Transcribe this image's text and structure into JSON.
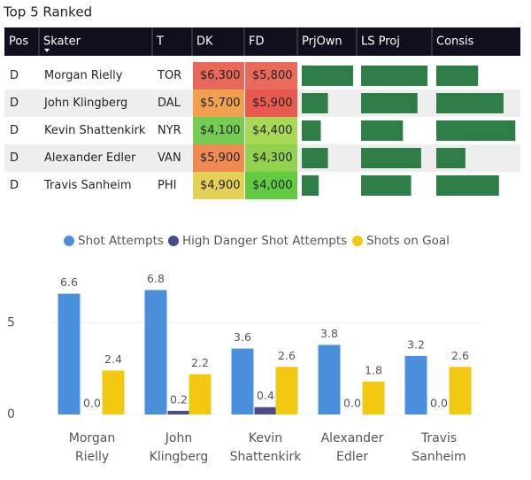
{
  "title": "Top 5 Ranked",
  "table": {
    "columns": [
      "Pos",
      "Skater",
      "T",
      "DK",
      "FD",
      "PrjOwn",
      "LS Proj",
      "Consis"
    ],
    "bar_color": "#2e7d46",
    "rows": [
      {
        "cells": [
          "D",
          "Morgan Rielly",
          "TOR",
          "$6,300",
          "$5,800"
        ],
        "cell_colors": [
          "#e8685a",
          "#ea6b5b"
        ],
        "bars": [
          15.1,
          7.3,
          46
        ]
      },
      {
        "cells": [
          "D",
          "John Klingberg",
          "DAL",
          "$5,700",
          "$5,900"
        ],
        "cell_colors": [
          "#f0a04e",
          "#e85a4f"
        ],
        "bars": [
          7.7,
          6.2,
          74
        ]
      },
      {
        "cells": [
          "D",
          "Kevin Shattenkirk",
          "NYR",
          "$4,100",
          "$4,400"
        ],
        "cell_colors": [
          "#74cc52",
          "#a8d856"
        ],
        "bars": [
          5.6,
          4.6,
          87
        ]
      },
      {
        "cells": [
          "D",
          "Alexander Edler",
          "VAN",
          "$5,900",
          "$4,300"
        ],
        "cell_colors": [
          "#ee8a52",
          "#92d24e"
        ],
        "bars": [
          7.7,
          6.6,
          32
        ]
      },
      {
        "cells": [
          "D",
          "Travis Sanheim",
          "PHI",
          "$4,900",
          "$4,000"
        ],
        "cell_colors": [
          "#e4d054",
          "#62cc40"
        ],
        "bars": [
          5.0,
          5.5,
          69
        ]
      }
    ]
  },
  "chart_data": {
    "type": "bar",
    "categories": [
      "Morgan Rielly",
      "John Klingberg",
      "Kevin Shattenkirk",
      "Alexander Edler",
      "Travis Sanheim"
    ],
    "series": [
      {
        "name": "Shot Attempts",
        "color": "#4a8fdc",
        "values": [
          6.6,
          6.8,
          3.6,
          3.8,
          3.2
        ],
        "value_labels": [
          "6.6",
          "6.8",
          "3.6",
          "3.8",
          "3.2"
        ]
      },
      {
        "name": "High Danger Shot Attempts",
        "color": "#4b4b8c",
        "values": [
          0,
          0.2,
          0.4,
          0,
          0
        ],
        "value_labels": [
          "0.0",
          "0.2",
          "0.4",
          "0.0",
          "0.0"
        ]
      },
      {
        "name": "Shots on Goal",
        "color": "#f2c811",
        "values": [
          2.4,
          2.2,
          2.6,
          1.8,
          2.6
        ],
        "value_labels": [
          "2.4",
          "2.2",
          "2.6",
          "1.8",
          "2.6"
        ]
      }
    ],
    "ylim": [
      0,
      7.5
    ],
    "yticks": [
      0,
      5
    ],
    "legend": "top"
  }
}
